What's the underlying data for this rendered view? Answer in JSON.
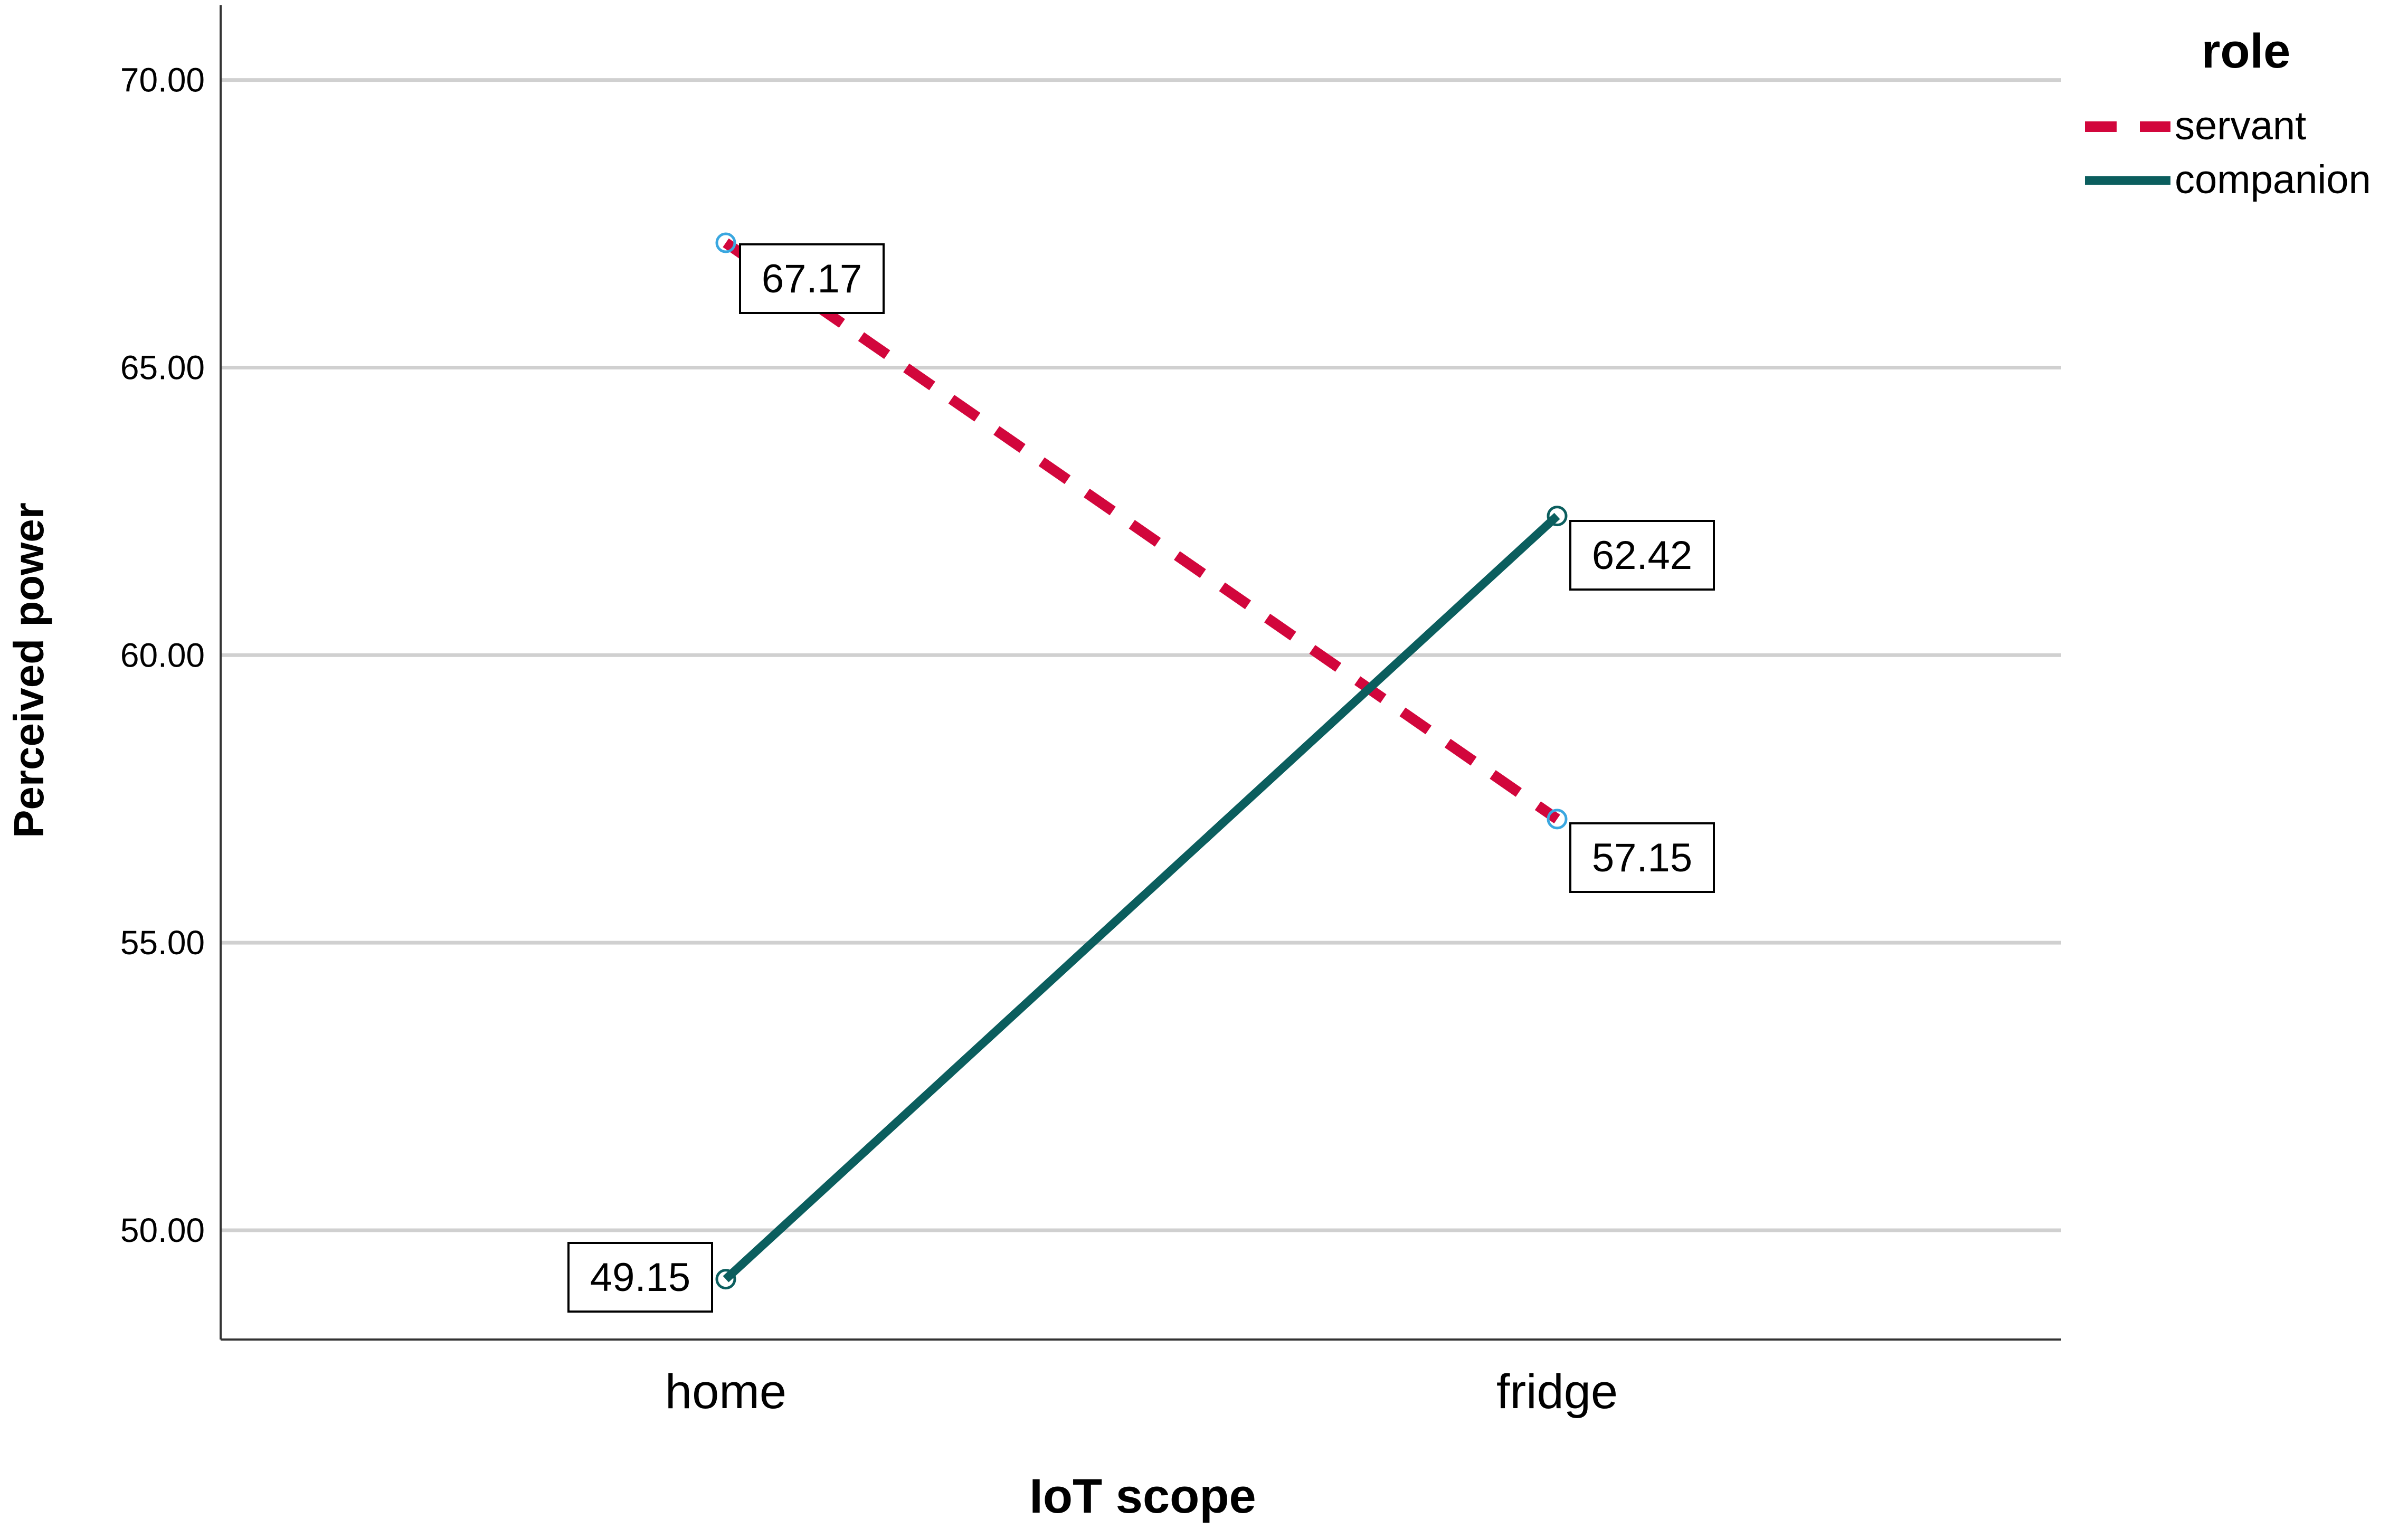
{
  "chart_data": {
    "type": "line",
    "title": "",
    "xlabel": "IoT scope",
    "ylabel": "Perceived power",
    "categories": [
      "home",
      "fridge"
    ],
    "ylim": [
      48.1,
      71.3
    ],
    "yticks": [
      "50.00",
      "55.00",
      "60.00",
      "65.00",
      "70.00"
    ],
    "grid": true,
    "legend": {
      "title": "role",
      "placement": "top-right"
    },
    "series": [
      {
        "name": "servant",
        "values": [
          67.17,
          57.15
        ],
        "labels": [
          "67.17",
          "57.15"
        ],
        "color": "#d2063c",
        "style": "dashed"
      },
      {
        "name": "companion",
        "values": [
          49.15,
          62.42
        ],
        "labels": [
          "49.15",
          "62.42"
        ],
        "color": "#0b5e5e",
        "style": "solid"
      }
    ]
  }
}
